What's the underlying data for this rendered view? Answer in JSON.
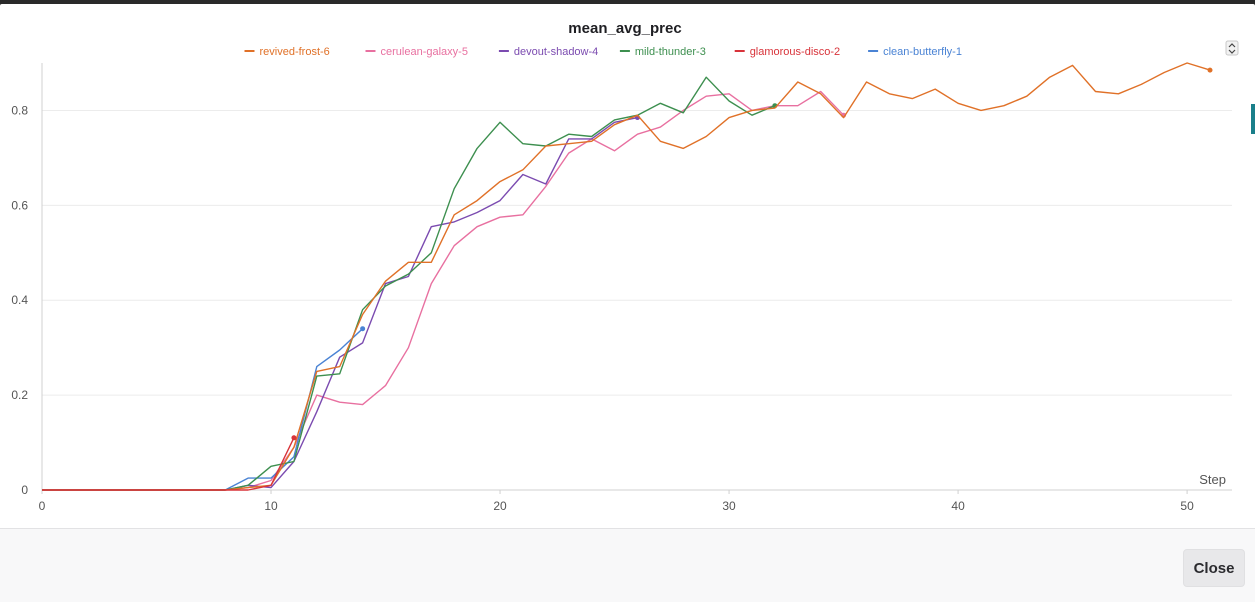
{
  "dialog": {
    "close_label": "Close"
  },
  "colors": {
    "revived-frost-6": "#e07128",
    "cerulean-galaxy-5": "#e870a0",
    "devout-shadow-4": "#7b4bb0",
    "mild-thunder-3": "#3d8f4f",
    "glamorous-disco-2": "#d8333a",
    "clean-butterfly-1": "#4a83d4"
  },
  "chart_data": {
    "type": "line",
    "title": "mean_avg_prec",
    "xlabel": "Step",
    "ylabel": "",
    "xlim": [
      0,
      51
    ],
    "ylim": [
      0,
      0.9
    ],
    "x_ticks": [
      "0",
      "10",
      "20",
      "30",
      "40",
      "50"
    ],
    "y_ticks": [
      "0",
      "0.2",
      "0.4",
      "0.6",
      "0.8"
    ],
    "legend_position": "top",
    "grid": true,
    "series": [
      {
        "name": "revived-frost-6",
        "x": [
          0,
          1,
          2,
          3,
          4,
          5,
          6,
          7,
          8,
          9,
          10,
          11,
          12,
          13,
          14,
          15,
          16,
          17,
          18,
          19,
          20,
          21,
          22,
          23,
          24,
          25,
          26,
          27,
          28,
          29,
          30,
          31,
          32,
          33,
          34,
          35,
          36,
          37,
          38,
          39,
          40,
          41,
          42,
          43,
          44,
          45,
          46,
          47,
          48,
          49,
          50,
          51
        ],
        "y": [
          0,
          0,
          0,
          0,
          0,
          0,
          0,
          0,
          0,
          0.005,
          0.01,
          0.09,
          0.25,
          0.26,
          0.37,
          0.44,
          0.48,
          0.48,
          0.58,
          0.61,
          0.65,
          0.675,
          0.725,
          0.73,
          0.735,
          0.77,
          0.79,
          0.735,
          0.72,
          0.745,
          0.785,
          0.8,
          0.805,
          0.86,
          0.835,
          0.785,
          0.86,
          0.835,
          0.825,
          0.845,
          0.815,
          0.8,
          0.81,
          0.83,
          0.87,
          0.895,
          0.84,
          0.835,
          0.855,
          0.88,
          0.9,
          0.885
        ]
      },
      {
        "name": "cerulean-galaxy-5",
        "x": [
          0,
          1,
          2,
          3,
          4,
          5,
          6,
          7,
          8,
          9,
          10,
          11,
          12,
          13,
          14,
          15,
          16,
          17,
          18,
          19,
          20,
          21,
          22,
          23,
          24,
          25,
          26,
          27,
          28,
          29,
          30,
          31,
          32,
          33,
          34,
          35
        ],
        "y": [
          0,
          0,
          0,
          0,
          0,
          0,
          0,
          0,
          0,
          0.005,
          0.02,
          0.09,
          0.2,
          0.185,
          0.18,
          0.22,
          0.3,
          0.435,
          0.515,
          0.555,
          0.575,
          0.58,
          0.64,
          0.71,
          0.74,
          0.715,
          0.75,
          0.765,
          0.8,
          0.83,
          0.835,
          0.8,
          0.81,
          0.81,
          0.84,
          0.79
        ]
      },
      {
        "name": "devout-shadow-4",
        "x": [
          0,
          1,
          2,
          3,
          4,
          5,
          6,
          7,
          8,
          9,
          10,
          11,
          12,
          13,
          14,
          15,
          16,
          17,
          18,
          19,
          20,
          21,
          22,
          23,
          24,
          25,
          26
        ],
        "y": [
          0,
          0,
          0,
          0,
          0,
          0,
          0,
          0,
          0,
          0.01,
          0.005,
          0.06,
          0.165,
          0.28,
          0.31,
          0.435,
          0.45,
          0.555,
          0.565,
          0.585,
          0.61,
          0.665,
          0.645,
          0.74,
          0.74,
          0.775,
          0.785
        ]
      },
      {
        "name": "mild-thunder-3",
        "x": [
          0,
          1,
          2,
          3,
          4,
          5,
          6,
          7,
          8,
          9,
          10,
          11,
          12,
          13,
          14,
          15,
          16,
          17,
          18,
          19,
          20,
          21,
          22,
          23,
          24,
          25,
          26,
          27,
          28,
          29,
          30,
          31,
          32
        ],
        "y": [
          0,
          0,
          0,
          0,
          0,
          0,
          0,
          0,
          0,
          0.01,
          0.05,
          0.06,
          0.24,
          0.245,
          0.38,
          0.43,
          0.455,
          0.5,
          0.635,
          0.72,
          0.775,
          0.73,
          0.725,
          0.75,
          0.745,
          0.78,
          0.79,
          0.815,
          0.795,
          0.87,
          0.82,
          0.79,
          0.81
        ]
      },
      {
        "name": "glamorous-disco-2",
        "x": [
          0,
          1,
          2,
          3,
          4,
          5,
          6,
          7,
          8,
          9,
          10,
          11
        ],
        "y": [
          0,
          0,
          0,
          0,
          0,
          0,
          0,
          0,
          0,
          0,
          0.01,
          0.11
        ]
      },
      {
        "name": "clean-butterfly-1",
        "x": [
          0,
          1,
          2,
          3,
          4,
          5,
          6,
          7,
          8,
          9,
          10,
          11,
          12,
          13,
          14
        ],
        "y": [
          0,
          0,
          0,
          0,
          0,
          0,
          0,
          0,
          0,
          0.025,
          0.025,
          0.07,
          0.26,
          0.295,
          0.34
        ]
      }
    ]
  }
}
